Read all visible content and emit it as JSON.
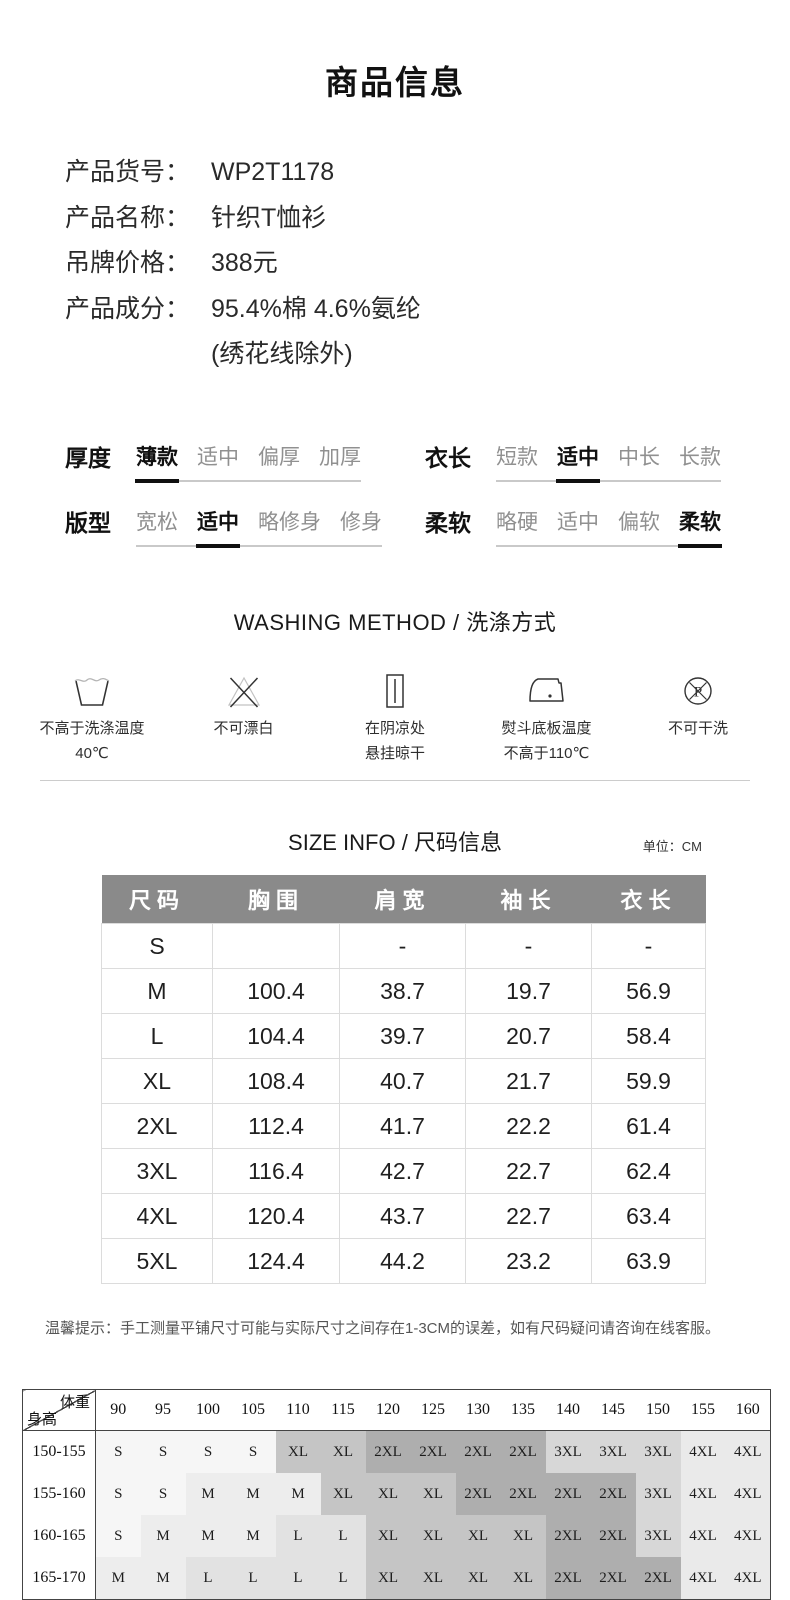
{
  "page_title": "商品信息",
  "product": {
    "rows": [
      {
        "label": "产品货号：",
        "value": "WP2T1178"
      },
      {
        "label": "产品名称：",
        "value": "针织T恤衫"
      },
      {
        "label": "吊牌价格：",
        "value": "388元"
      },
      {
        "label": "产品成分：",
        "value": "95.4%棉 4.6%氨纶"
      }
    ],
    "note": "(绣花线除外)"
  },
  "attributes": [
    {
      "label": "厚度",
      "options": [
        "薄款",
        "适中",
        "偏厚",
        "加厚"
      ],
      "selected": 0
    },
    {
      "label": "衣长",
      "options": [
        "短款",
        "适中",
        "中长",
        "长款"
      ],
      "selected": 1
    },
    {
      "label": "版型",
      "options": [
        "宽松",
        "适中",
        "略修身",
        "修身"
      ],
      "selected": 1
    },
    {
      "label": "柔软",
      "options": [
        "略硬",
        "适中",
        "偏软",
        "柔软"
      ],
      "selected": 3
    }
  ],
  "washing": {
    "title": "WASHING METHOD / 洗涤方式",
    "items": [
      {
        "icon": "washtub-40-icon",
        "lines": [
          "不高于洗涤温度",
          "40℃"
        ]
      },
      {
        "icon": "no-bleach-icon",
        "lines": [
          "不可漂白"
        ]
      },
      {
        "icon": "hang-dry-shade-icon",
        "lines": [
          "在阴凉处",
          "悬挂晾干"
        ]
      },
      {
        "icon": "iron-low-temp-icon",
        "lines": [
          "熨斗底板温度",
          "不高于110℃"
        ]
      },
      {
        "icon": "no-dry-clean-icon",
        "lines": [
          "不可干洗"
        ]
      }
    ]
  },
  "size_info": {
    "title": "SIZE INFO / 尺码信息",
    "unit": "单位：CM",
    "header_bg": "#8a8a8a",
    "headers": [
      "尺码",
      "胸围",
      "肩宽",
      "袖长",
      "衣长"
    ],
    "rows": [
      [
        "S",
        "",
        "-",
        "-",
        "-"
      ],
      [
        "M",
        "100.4",
        "38.7",
        "19.7",
        "56.9"
      ],
      [
        "L",
        "104.4",
        "39.7",
        "20.7",
        "58.4"
      ],
      [
        "XL",
        "108.4",
        "40.7",
        "21.7",
        "59.9"
      ],
      [
        "2XL",
        "112.4",
        "41.7",
        "22.2",
        "61.4"
      ],
      [
        "3XL",
        "116.4",
        "42.7",
        "22.7",
        "62.4"
      ],
      [
        "4XL",
        "120.4",
        "43.7",
        "22.7",
        "63.4"
      ],
      [
        "5XL",
        "124.4",
        "44.2",
        "23.2",
        "63.9"
      ]
    ]
  },
  "tip": "温馨提示：手工测量平铺尺寸可能与实际尺寸之间存在1-3CM的误差，如有尺码疑问请咨询在线客服。",
  "matrix": {
    "corner_top": "体重",
    "corner_bottom": "身高",
    "weights": [
      "90",
      "95",
      "100",
      "105",
      "110",
      "115",
      "120",
      "125",
      "130",
      "135",
      "140",
      "145",
      "150",
      "155",
      "160"
    ],
    "rows": [
      {
        "height": "150-155",
        "cells": [
          "S",
          "S",
          "S",
          "S",
          "XL",
          "XL",
          "2XL",
          "2XL",
          "2XL",
          "2XL",
          "3XL",
          "3XL",
          "3XL",
          "4XL",
          "4XL"
        ]
      },
      {
        "height": "155-160",
        "cells": [
          "S",
          "S",
          "M",
          "M",
          "M",
          "XL",
          "XL",
          "XL",
          "2XL",
          "2XL",
          "2XL",
          "2XL",
          "3XL",
          "4XL",
          "4XL"
        ]
      },
      {
        "height": "160-165",
        "cells": [
          "S",
          "M",
          "M",
          "M",
          "L",
          "L",
          "XL",
          "XL",
          "XL",
          "XL",
          "2XL",
          "2XL",
          "3XL",
          "4XL",
          "4XL"
        ]
      },
      {
        "height": "165-170",
        "cells": [
          "M",
          "M",
          "L",
          "L",
          "L",
          "L",
          "XL",
          "XL",
          "XL",
          "XL",
          "2XL",
          "2XL",
          "2XL",
          "4XL",
          "4XL"
        ]
      }
    ],
    "size_colors": {
      "S": "#f6f6f6",
      "M": "#ededed",
      "L": "#e2e2e2",
      "XL": "#c5c5c5",
      "2XL": "#aeaeae",
      "3XL": "#d7d7d7",
      "4XL": "#eaeaea"
    }
  }
}
